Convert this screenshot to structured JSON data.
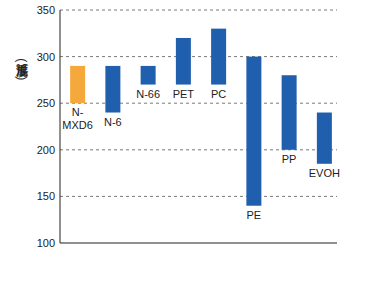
{
  "chart_data": {
    "type": "floating_bar",
    "y_label": "成形温度 (℃)",
    "categories": [
      "N-MXD6",
      "N-6",
      "N-66",
      "PET",
      "PC",
      "PE",
      "PP",
      "EVOH"
    ],
    "min": [
      250,
      240,
      270,
      270,
      270,
      140,
      200,
      185
    ],
    "max": [
      290,
      290,
      290,
      320,
      330,
      300,
      280,
      240
    ],
    "colors": [
      "#f5a83c",
      "#1f5fae",
      "#1f5fae",
      "#1f5fae",
      "#1f5fae",
      "#1f5fae",
      "#1f5fae",
      "#1f5fae"
    ],
    "ylim": [
      100,
      350
    ],
    "yticks": [
      100,
      150,
      200,
      250,
      300,
      350
    ],
    "grid": true
  }
}
